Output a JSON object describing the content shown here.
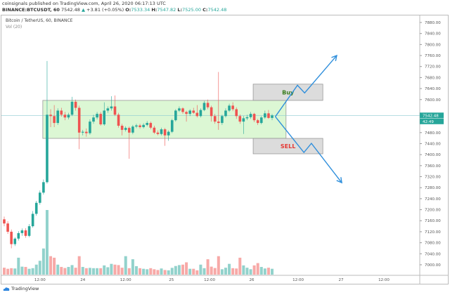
{
  "header": {
    "published": "coinsignals published on TradingView.com, April 26, 2020 06:17:13 UTC",
    "symbol": "BINANCE:BTCUSDT, 60",
    "last": "7542.48",
    "change": "+3.81 (+0.05%)",
    "o_label": "O:",
    "o": "7533.34",
    "h_label": "H:",
    "h": "7547.82",
    "l_label": "L:",
    "l": "7525.00",
    "c_label": "C:",
    "c": "7542.48"
  },
  "legend": {
    "title": "Bitcoin / TetherUS, 60, BINANCE",
    "volume": "Vol (20)"
  },
  "footer": {
    "logo_text": "TradingView"
  },
  "chart_data": {
    "type": "candlestick",
    "interval": "60",
    "colors": {
      "up": "#26a69a",
      "down": "#ef5350",
      "range_box": "#dcf7d4",
      "arrow": "#2f8fdc",
      "buy_text": "#3a7d1e",
      "sell_text": "#e53935"
    },
    "ylim": [
      6960,
      7920
    ],
    "y_ticks": [
      7880,
      7840,
      7800,
      7760,
      7720,
      7680,
      7640,
      7600,
      7560,
      7520,
      7480,
      7440,
      7400,
      7360,
      7320,
      7280,
      7240,
      7200,
      7160,
      7120,
      7080,
      7040,
      7000
    ],
    "x_ticks": [
      {
        "i": 10,
        "label": "12:00"
      },
      {
        "i": 22,
        "label": "24"
      },
      {
        "i": 34,
        "label": "12:00"
      },
      {
        "i": 46.8,
        "label": "25"
      },
      {
        "i": 57.5,
        "label": "12:00"
      },
      {
        "i": 69.3,
        "label": "26"
      },
      {
        "i": 82.3,
        "label": "12:00"
      },
      {
        "i": 94.3,
        "label": "27"
      },
      {
        "i": 106.3,
        "label": "12:00"
      }
    ],
    "last_price_label": "7542.48",
    "countdown_label": "42:49",
    "candles": [
      [
        7165,
        7175,
        7140,
        7150
      ],
      [
        7150,
        7158,
        7112,
        7120
      ],
      [
        7120,
        7128,
        7060,
        7075
      ],
      [
        7075,
        7100,
        7068,
        7095
      ],
      [
        7095,
        7122,
        7088,
        7115
      ],
      [
        7115,
        7132,
        7105,
        7125
      ],
      [
        7125,
        7133,
        7098,
        7105
      ],
      [
        7105,
        7148,
        7100,
        7140
      ],
      [
        7140,
        7195,
        7135,
        7185
      ],
      [
        7185,
        7232,
        7178,
        7225
      ],
      [
        7225,
        7270,
        7218,
        7262
      ],
      [
        7262,
        7310,
        7255,
        7300
      ],
      [
        7300,
        7740,
        7295,
        7545
      ],
      [
        7545,
        7565,
        7500,
        7540
      ],
      [
        7540,
        7580,
        7500,
        7515
      ],
      [
        7515,
        7568,
        7508,
        7560
      ],
      [
        7560,
        7570,
        7538,
        7545
      ],
      [
        7545,
        7555,
        7525,
        7535
      ],
      [
        7535,
        7552,
        7528,
        7545
      ],
      [
        7545,
        7610,
        7540,
        7592
      ],
      [
        7592,
        7600,
        7560,
        7570
      ],
      [
        7570,
        7578,
        7420,
        7480
      ],
      [
        7480,
        7490,
        7470,
        7483
      ],
      [
        7483,
        7495,
        7465,
        7478
      ],
      [
        7478,
        7528,
        7472,
        7520
      ],
      [
        7520,
        7545,
        7512,
        7535
      ],
      [
        7535,
        7555,
        7528,
        7548
      ],
      [
        7548,
        7555,
        7505,
        7510
      ],
      [
        7510,
        7590,
        7505,
        7560
      ],
      [
        7560,
        7575,
        7552,
        7568
      ],
      [
        7568,
        7612,
        7560,
        7575
      ],
      [
        7575,
        7615,
        7540,
        7545
      ],
      [
        7545,
        7552,
        7498,
        7505
      ],
      [
        7505,
        7512,
        7470,
        7490
      ],
      [
        7490,
        7503,
        7484,
        7497
      ],
      [
        7497,
        7502,
        7385,
        7480
      ],
      [
        7480,
        7508,
        7474,
        7502
      ],
      [
        7502,
        7512,
        7496,
        7506
      ],
      [
        7506,
        7512,
        7494,
        7500
      ],
      [
        7500,
        7514,
        7495,
        7508
      ],
      [
        7508,
        7522,
        7503,
        7515
      ],
      [
        7515,
        7520,
        7492,
        7498
      ],
      [
        7498,
        7505,
        7475,
        7480
      ],
      [
        7480,
        7488,
        7470,
        7475
      ],
      [
        7475,
        7498,
        7470,
        7492
      ],
      [
        7492,
        7497,
        7432,
        7470
      ],
      [
        7470,
        7488,
        7450,
        7483
      ],
      [
        7483,
        7530,
        7478,
        7525
      ],
      [
        7525,
        7565,
        7520,
        7560
      ],
      [
        7560,
        7575,
        7555,
        7568
      ],
      [
        7568,
        7572,
        7548,
        7555
      ],
      [
        7555,
        7560,
        7520,
        7548
      ],
      [
        7548,
        7565,
        7540,
        7560
      ],
      [
        7560,
        7570,
        7548,
        7552
      ],
      [
        7552,
        7580,
        7535,
        7540
      ],
      [
        7540,
        7568,
        7535,
        7562
      ],
      [
        7562,
        7595,
        7558,
        7588
      ],
      [
        7588,
        7600,
        7565,
        7572
      ],
      [
        7572,
        7578,
        7520,
        7540
      ],
      [
        7540,
        7548,
        7512,
        7520
      ],
      [
        7520,
        7700,
        7490,
        7515
      ],
      [
        7515,
        7545,
        7508,
        7540
      ],
      [
        7540,
        7568,
        7535,
        7560
      ],
      [
        7560,
        7585,
        7555,
        7578
      ],
      [
        7578,
        7590,
        7558,
        7565
      ],
      [
        7565,
        7572,
        7530,
        7540
      ],
      [
        7540,
        7546,
        7512,
        7520
      ],
      [
        7520,
        7540,
        7475,
        7532
      ],
      [
        7532,
        7545,
        7525,
        7536
      ],
      [
        7536,
        7555,
        7530,
        7548
      ],
      [
        7548,
        7552,
        7518,
        7525
      ],
      [
        7525,
        7530,
        7508,
        7515
      ],
      [
        7515,
        7540,
        7510,
        7535
      ],
      [
        7535,
        7560,
        7530,
        7550
      ],
      [
        7550,
        7562,
        7530,
        7533.34
      ],
      [
        7533.34,
        7547.82,
        7525.0,
        7542.48
      ]
    ],
    "volume": [
      450,
      380,
      420,
      400,
      1100,
      520,
      500,
      380,
      420,
      650,
      900,
      1700,
      4200,
      1200,
      1100,
      650,
      500,
      430,
      500,
      620,
      450,
      1200,
      500,
      420,
      440,
      420,
      420,
      420,
      600,
      480,
      700,
      650,
      620,
      450,
      1200,
      420,
      1000,
      550,
      420,
      380,
      350,
      420,
      350,
      300,
      400,
      300,
      280,
      440,
      560,
      620,
      650,
      800,
      380,
      380,
      280,
      650,
      420,
      1000,
      520,
      430,
      1200,
      350,
      450,
      700,
      420,
      400,
      1100,
      600,
      450,
      350,
      600,
      750,
      500,
      400,
      450,
      380
    ],
    "annotations": {
      "range_box": {
        "from_i": 10.8,
        "to_i": 78.9,
        "top": 7597,
        "bottom": 7459
      },
      "buy_box": {
        "label": "Buy",
        "from_i": 69.7,
        "to_i": 89.2,
        "top": 7656,
        "bottom": 7597
      },
      "sell_box": {
        "label": "SELL",
        "from_i": 69.7,
        "to_i": 89.2,
        "top": 7459,
        "bottom": 7403
      },
      "up_path": [
        [
          75.9,
          7538
        ],
        [
          82.1,
          7652
        ],
        [
          84.1,
          7624
        ],
        [
          93.1,
          7760
        ]
      ],
      "down_path": [
        [
          75.9,
          7538
        ],
        [
          83.9,
          7408
        ],
        [
          86.0,
          7441
        ],
        [
          94.5,
          7298
        ]
      ]
    }
  }
}
